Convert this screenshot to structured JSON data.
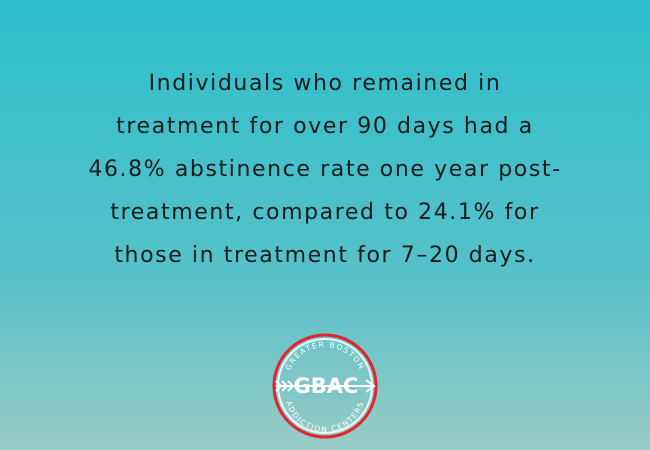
{
  "quote": {
    "lines": [
      "Individuals who remained in",
      "treatment for over 90 days had a",
      "46.8% abstinence rate one year post-",
      "treatment, compared to 24.1% for",
      "those in treatment for 7–20 days."
    ]
  },
  "logo": {
    "initials": "GBAC",
    "top_arc": "GREATER BOSTON",
    "bottom_arc": "ADDICTION CENTERS"
  }
}
